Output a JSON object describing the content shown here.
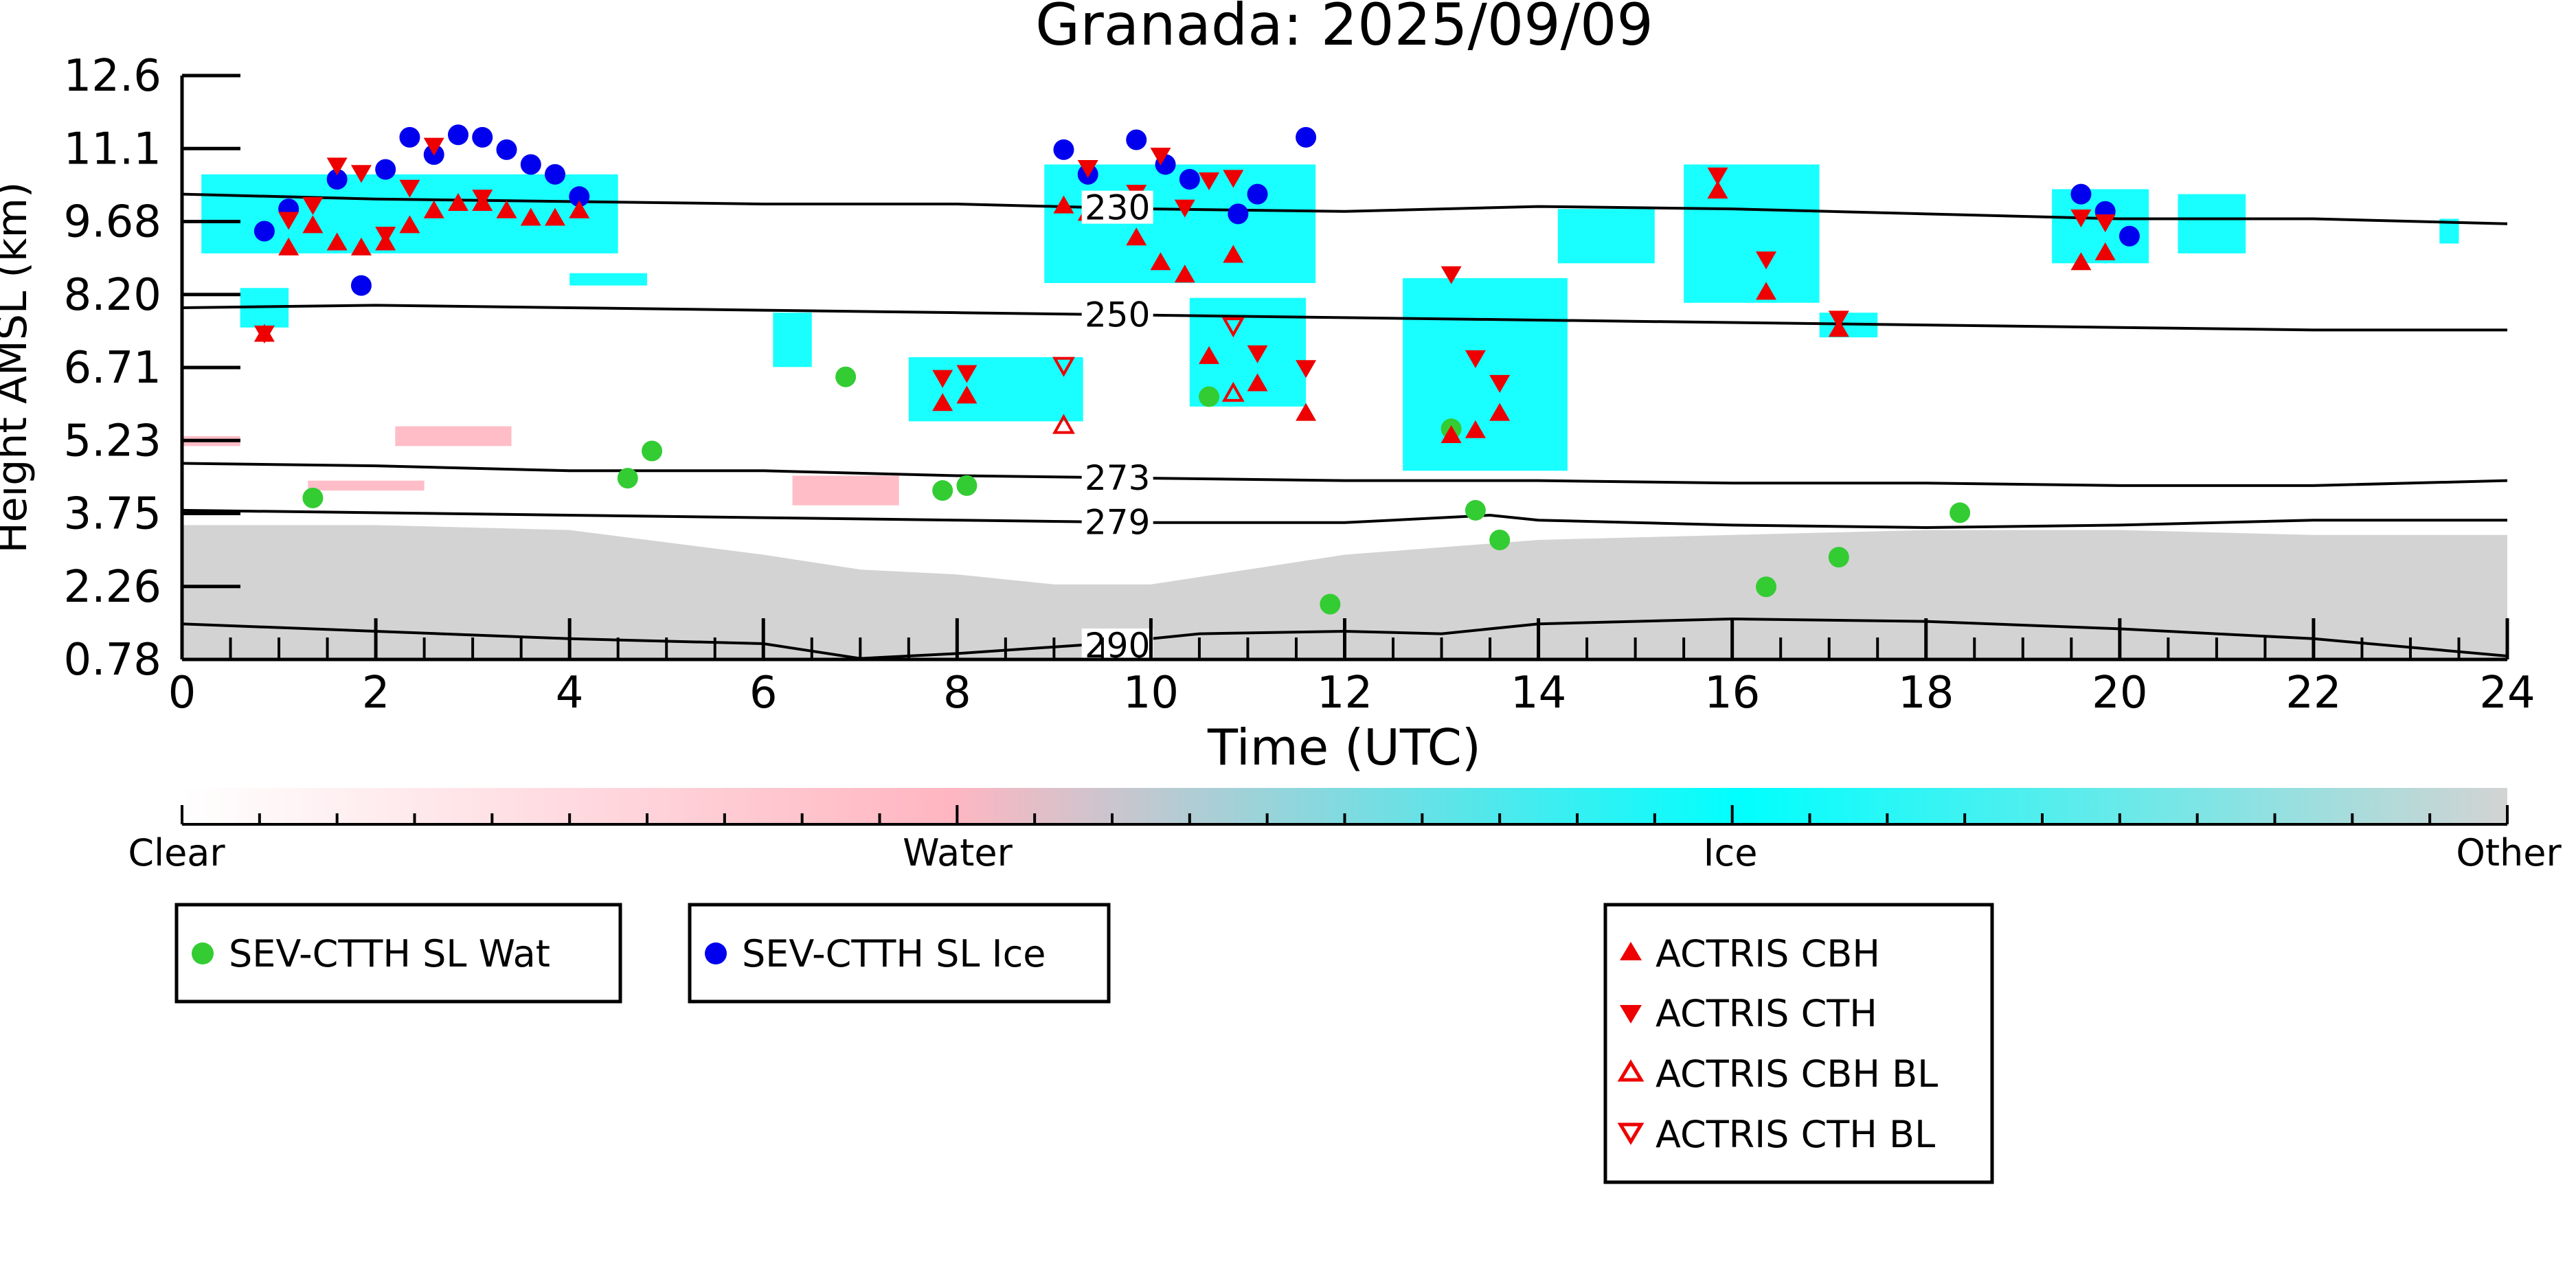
{
  "chart_data": {
    "type": "scatter",
    "title": "Granada: 2025/09/09",
    "xlabel": "Time (UTC)",
    "ylabel": "Height AMSL (km)",
    "xlim": [
      0,
      24
    ],
    "ylim": [
      0.78,
      12.6
    ],
    "x_ticks": [
      "0",
      "2",
      "4",
      "6",
      "8",
      "10",
      "12",
      "14",
      "16",
      "18",
      "20",
      "22",
      "24"
    ],
    "y_ticks": [
      "0.78",
      "2.26",
      "3.75",
      "5.23",
      "6.71",
      "8.20",
      "9.68",
      "11.1",
      "12.6"
    ],
    "colors": {
      "clear": "#ffffff",
      "water": "#ffb6c1",
      "ice": "#00ffff",
      "other": "#d3d3d3",
      "wat_marker": "#33cc33",
      "ice_marker": "#0000ee",
      "actris": "#ee0000"
    },
    "colorbar": {
      "labels": [
        "Clear",
        "Water",
        "Ice",
        "Other"
      ]
    },
    "isotherms": [
      {
        "label": "230",
        "label_x": 9.3,
        "points": [
          [
            0,
            10.2
          ],
          [
            2,
            10.1
          ],
          [
            4,
            10.05
          ],
          [
            6,
            10.0
          ],
          [
            8,
            10.0
          ],
          [
            10,
            9.9
          ],
          [
            12,
            9.85
          ],
          [
            14,
            9.95
          ],
          [
            16,
            9.9
          ],
          [
            18,
            9.8
          ],
          [
            20,
            9.7
          ],
          [
            22,
            9.7
          ],
          [
            24,
            9.6
          ]
        ]
      },
      {
        "label": "250",
        "label_x": 9.3,
        "points": [
          [
            0,
            7.9
          ],
          [
            2,
            7.95
          ],
          [
            4,
            7.9
          ],
          [
            6,
            7.85
          ],
          [
            8,
            7.8
          ],
          [
            10,
            7.75
          ],
          [
            12,
            7.7
          ],
          [
            14,
            7.65
          ],
          [
            16,
            7.6
          ],
          [
            18,
            7.55
          ],
          [
            20,
            7.5
          ],
          [
            22,
            7.45
          ],
          [
            24,
            7.45
          ]
        ]
      },
      {
        "label": "273",
        "label_x": 9.3,
        "points": [
          [
            0,
            4.75
          ],
          [
            2,
            4.7
          ],
          [
            4,
            4.6
          ],
          [
            6,
            4.6
          ],
          [
            8,
            4.5
          ],
          [
            10,
            4.45
          ],
          [
            12,
            4.4
          ],
          [
            14,
            4.4
          ],
          [
            16,
            4.35
          ],
          [
            18,
            4.35
          ],
          [
            20,
            4.3
          ],
          [
            22,
            4.3
          ],
          [
            24,
            4.4
          ]
        ]
      },
      {
        "label": "279",
        "label_x": 9.3,
        "points": [
          [
            0,
            3.8
          ],
          [
            2,
            3.75
          ],
          [
            4,
            3.7
          ],
          [
            6,
            3.65
          ],
          [
            8,
            3.6
          ],
          [
            10,
            3.55
          ],
          [
            12,
            3.55
          ],
          [
            13.5,
            3.7
          ],
          [
            14,
            3.6
          ],
          [
            16,
            3.5
          ],
          [
            18,
            3.45
          ],
          [
            20,
            3.5
          ],
          [
            22,
            3.6
          ],
          [
            24,
            3.6
          ]
        ]
      },
      {
        "label": "290",
        "label_x": 9.3,
        "points": [
          [
            0,
            1.5
          ],
          [
            2,
            1.35
          ],
          [
            4,
            1.2
          ],
          [
            6,
            1.1
          ],
          [
            7,
            0.8
          ],
          [
            8,
            0.9
          ],
          [
            9.5,
            1.1
          ],
          [
            10.5,
            1.3
          ],
          [
            12,
            1.35
          ],
          [
            13,
            1.3
          ],
          [
            14,
            1.5
          ],
          [
            16,
            1.6
          ],
          [
            18,
            1.55
          ],
          [
            20,
            1.4
          ],
          [
            22,
            1.2
          ],
          [
            24,
            0.85
          ]
        ]
      }
    ],
    "cloud_regions": [
      {
        "cls": "ice",
        "x0": 0.2,
        "x1": 4.5,
        "y0": 9.0,
        "y1": 10.6
      },
      {
        "cls": "ice",
        "x0": 0.6,
        "x1": 1.1,
        "y0": 7.5,
        "y1": 8.3
      },
      {
        "cls": "ice",
        "x0": 4.0,
        "x1": 4.8,
        "y0": 8.35,
        "y1": 8.6
      },
      {
        "cls": "ice",
        "x0": 6.1,
        "x1": 6.5,
        "y0": 6.7,
        "y1": 7.8
      },
      {
        "cls": "ice",
        "x0": 7.5,
        "x1": 9.3,
        "y0": 5.6,
        "y1": 6.9
      },
      {
        "cls": "ice",
        "x0": 8.9,
        "x1": 11.7,
        "y0": 8.4,
        "y1": 10.8
      },
      {
        "cls": "ice",
        "x0": 10.4,
        "x1": 11.6,
        "y0": 5.9,
        "y1": 8.1
      },
      {
        "cls": "ice",
        "x0": 12.6,
        "x1": 14.3,
        "y0": 4.6,
        "y1": 8.5
      },
      {
        "cls": "ice",
        "x0": 14.2,
        "x1": 15.2,
        "y0": 8.8,
        "y1": 9.9
      },
      {
        "cls": "ice",
        "x0": 15.5,
        "x1": 16.9,
        "y0": 8.0,
        "y1": 10.8
      },
      {
        "cls": "ice",
        "x0": 16.9,
        "x1": 17.5,
        "y0": 7.3,
        "y1": 7.8
      },
      {
        "cls": "ice",
        "x0": 19.3,
        "x1": 20.3,
        "y0": 8.8,
        "y1": 10.3
      },
      {
        "cls": "ice",
        "x0": 20.6,
        "x1": 21.3,
        "y0": 9.0,
        "y1": 10.2
      },
      {
        "cls": "ice",
        "x0": 23.3,
        "x1": 23.5,
        "y0": 9.2,
        "y1": 9.7
      },
      {
        "cls": "water",
        "x0": 6.3,
        "x1": 7.4,
        "y0": 3.9,
        "y1": 4.5
      },
      {
        "cls": "water",
        "x0": 1.3,
        "x1": 2.5,
        "y0": 4.2,
        "y1": 4.4
      },
      {
        "cls": "water",
        "x0": 2.2,
        "x1": 3.4,
        "y0": 5.1,
        "y1": 5.5
      },
      {
        "cls": "water",
        "x0": 0.0,
        "x1": 0.6,
        "y0": 5.1,
        "y1": 5.3
      }
    ],
    "other_layer": {
      "points": [
        [
          0,
          3.5
        ],
        [
          2,
          3.5
        ],
        [
          4,
          3.4
        ],
        [
          6,
          2.9
        ],
        [
          7,
          2.6
        ],
        [
          8,
          2.5
        ],
        [
          9,
          2.3
        ],
        [
          10,
          2.3
        ],
        [
          11,
          2.6
        ],
        [
          12,
          2.9
        ],
        [
          14,
          3.2
        ],
        [
          16,
          3.3
        ],
        [
          18,
          3.4
        ],
        [
          20,
          3.4
        ],
        [
          22,
          3.3
        ],
        [
          24,
          3.3
        ]
      ]
    },
    "series": [
      {
        "name": "SEV-CTTH SL Wat",
        "marker": "circle",
        "color": "#33cc33",
        "points": [
          [
            1.35,
            4.05
          ],
          [
            4.6,
            4.45
          ],
          [
            4.85,
            5.0
          ],
          [
            6.85,
            6.5
          ],
          [
            7.85,
            4.2
          ],
          [
            8.1,
            4.3
          ],
          [
            10.6,
            6.1
          ],
          [
            11.85,
            1.9
          ],
          [
            13.1,
            5.45
          ],
          [
            13.35,
            3.8
          ],
          [
            13.6,
            3.2
          ],
          [
            16.35,
            2.25
          ],
          [
            17.1,
            2.85
          ],
          [
            18.35,
            3.75
          ]
        ]
      },
      {
        "name": "SEV-CTTH SL Ice",
        "marker": "circle",
        "color": "#0000ee",
        "points": [
          [
            0.85,
            9.45
          ],
          [
            1.1,
            9.9
          ],
          [
            1.6,
            10.5
          ],
          [
            1.85,
            8.35
          ],
          [
            2.1,
            10.7
          ],
          [
            2.35,
            11.35
          ],
          [
            2.6,
            11.0
          ],
          [
            2.85,
            11.4
          ],
          [
            3.1,
            11.35
          ],
          [
            3.35,
            11.1
          ],
          [
            3.6,
            10.8
          ],
          [
            3.85,
            10.6
          ],
          [
            4.1,
            10.15
          ],
          [
            9.1,
            11.1
          ],
          [
            9.35,
            10.6
          ],
          [
            9.85,
            11.3
          ],
          [
            10.15,
            10.8
          ],
          [
            10.4,
            10.5
          ],
          [
            10.9,
            9.8
          ],
          [
            11.1,
            10.2
          ],
          [
            11.6,
            11.35
          ],
          [
            19.6,
            10.2
          ],
          [
            19.85,
            9.85
          ],
          [
            20.1,
            9.35
          ]
        ]
      },
      {
        "name": "ACTRIS CBH",
        "marker": "triangle-up",
        "color": "#ee0000",
        "points": [
          [
            0.85,
            7.35
          ],
          [
            1.1,
            9.1
          ],
          [
            1.35,
            9.55
          ],
          [
            1.6,
            9.2
          ],
          [
            1.85,
            9.1
          ],
          [
            2.1,
            9.2
          ],
          [
            2.35,
            9.55
          ],
          [
            2.6,
            9.85
          ],
          [
            2.85,
            10.0
          ],
          [
            3.1,
            10.0
          ],
          [
            3.35,
            9.85
          ],
          [
            3.6,
            9.7
          ],
          [
            3.85,
            9.7
          ],
          [
            4.1,
            9.85
          ],
          [
            7.85,
            5.95
          ],
          [
            8.1,
            6.1
          ],
          [
            9.1,
            9.95
          ],
          [
            9.35,
            9.8
          ],
          [
            9.85,
            9.3
          ],
          [
            10.1,
            8.8
          ],
          [
            10.35,
            8.55
          ],
          [
            10.6,
            6.9
          ],
          [
            10.85,
            8.95
          ],
          [
            11.1,
            6.35
          ],
          [
            11.6,
            5.75
          ],
          [
            13.1,
            5.3
          ],
          [
            13.35,
            5.4
          ],
          [
            13.6,
            5.75
          ],
          [
            15.85,
            10.25
          ],
          [
            16.35,
            8.2
          ],
          [
            17.1,
            7.45
          ],
          [
            19.6,
            8.8
          ],
          [
            19.85,
            9.0
          ]
        ]
      },
      {
        "name": "ACTRIS CTH",
        "marker": "triangle-down",
        "color": "#ee0000",
        "points": [
          [
            0.85,
            7.4
          ],
          [
            1.1,
            9.7
          ],
          [
            1.35,
            10.0
          ],
          [
            1.6,
            10.8
          ],
          [
            1.85,
            10.65
          ],
          [
            2.1,
            9.4
          ],
          [
            2.35,
            10.35
          ],
          [
            2.6,
            11.2
          ],
          [
            3.1,
            10.15
          ],
          [
            7.85,
            6.5
          ],
          [
            8.1,
            6.6
          ],
          [
            9.35,
            10.75
          ],
          [
            9.85,
            10.25
          ],
          [
            10.1,
            11.0
          ],
          [
            10.35,
            9.95
          ],
          [
            10.6,
            10.5
          ],
          [
            10.85,
            10.55
          ],
          [
            11.1,
            7.0
          ],
          [
            11.6,
            6.7
          ],
          [
            13.1,
            8.6
          ],
          [
            13.35,
            6.9
          ],
          [
            13.6,
            6.4
          ],
          [
            15.85,
            10.6
          ],
          [
            16.35,
            8.9
          ],
          [
            17.1,
            7.7
          ],
          [
            19.6,
            9.75
          ],
          [
            19.85,
            9.65
          ]
        ]
      },
      {
        "name": "ACTRIS CBH BL",
        "marker": "triangle-up-open",
        "color": "#ee0000",
        "points": [
          [
            9.1,
            5.5
          ],
          [
            10.85,
            6.15
          ]
        ]
      },
      {
        "name": "ACTRIS CTH BL",
        "marker": "triangle-down-open",
        "color": "#ee0000",
        "points": [
          [
            9.1,
            6.75
          ],
          [
            10.85,
            7.55
          ]
        ]
      }
    ]
  }
}
